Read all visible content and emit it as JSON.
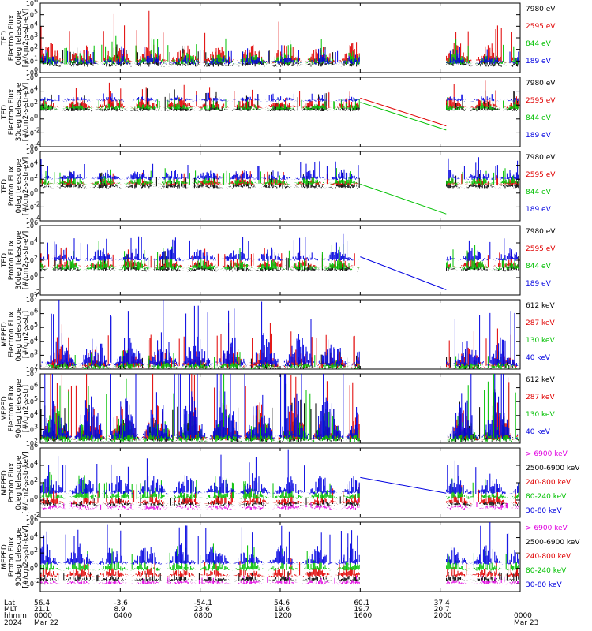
{
  "chart_data": {
    "type": "line",
    "x_axis": {
      "rows": [
        {
          "label": "Lat",
          "values": [
            "56.4",
            "-3.6",
            "-54.1",
            "54.6",
            "60.1",
            "37.4",
            ""
          ]
        },
        {
          "label": "MLT",
          "values": [
            "21.1",
            "8.9",
            "23.6",
            "19.6",
            "19.7",
            "20.7",
            ""
          ]
        },
        {
          "label": "hhmm",
          "values": [
            "0000",
            "0400",
            "0800",
            "1200",
            "1600",
            "2000",
            "0000"
          ]
        },
        {
          "label": "2024",
          "values": [
            "Mar 22",
            "",
            "",
            "",
            "",
            "",
            "Mar 23"
          ]
        }
      ],
      "hours": [
        0,
        4,
        8,
        12,
        16,
        20,
        24
      ],
      "range_hours": [
        0,
        24
      ],
      "data_gap_hours": [
        16.0,
        20.3
      ]
    },
    "panels": [
      {
        "ylabel": [
          "TED",
          "Electron Flux",
          "0deg telescope",
          "[#/cm2-s-str-eV]"
        ],
        "ylim_exp": [
          0,
          6
        ],
        "yticks": [
          {
            "exp": 6,
            "base": "10",
            "sup": "6"
          },
          {
            "exp": 5,
            "base": "10",
            "sup": "5"
          },
          {
            "exp": 4,
            "base": "10",
            "sup": "4"
          },
          {
            "exp": 3,
            "base": "10",
            "sup": "3"
          },
          {
            "exp": 2,
            "base": "10",
            "sup": "2"
          },
          {
            "exp": 1,
            "base": "10",
            "sup": "1"
          },
          {
            "exp": 0,
            "base": "10",
            "sup": "0"
          }
        ],
        "legend": [
          "7980 eV",
          "2595 eV",
          "844 eV",
          "189 eV"
        ],
        "colors": [
          "#000000",
          "#e00000",
          "#00c000",
          "#0000e0"
        ],
        "base": [
          0.6,
          0.9,
          0.8,
          0.8
        ],
        "amp": [
          0.8,
          1.8,
          1.0,
          0.7
        ],
        "gap_lines": []
      },
      {
        "ylabel": [
          "TED",
          "Electron Flux",
          "30deg telescope",
          "[#/cm2-s-str-eV]"
        ],
        "ylim_exp": [
          -4,
          6
        ],
        "yticks": [
          {
            "exp": 6,
            "base": "10",
            "sup": "6"
          },
          {
            "exp": 4,
            "base": "10",
            "sup": "4"
          },
          {
            "exp": 2,
            "base": "10",
            "sup": "2"
          },
          {
            "exp": 0,
            "base": "10",
            "sup": "0"
          },
          {
            "exp": -2,
            "base": "10",
            "sup": "-2"
          },
          {
            "exp": -4,
            "base": "10",
            "sup": "-4"
          }
        ],
        "legend": [
          "7980 eV",
          "2595 eV",
          "844 eV",
          "189 eV"
        ],
        "colors": [
          "#000000",
          "#e00000",
          "#00c000",
          "#0000e0"
        ],
        "base": [
          1.2,
          1.6,
          1.4,
          2.6
        ],
        "amp": [
          1.4,
          1.6,
          0.8,
          0.6
        ],
        "gap_lines": [
          {
            "series": 1,
            "from": 3.0,
            "to": -1.0
          },
          {
            "series": 2,
            "from": 2.4,
            "to": -1.6
          }
        ]
      },
      {
        "ylabel": [
          "TED",
          "Proton Flux",
          "0deg telescope",
          "[#/cm2-s-str-eV]"
        ],
        "ylim_exp": [
          -4,
          6
        ],
        "yticks": [
          {
            "exp": 6,
            "base": "10",
            "sup": "6"
          },
          {
            "exp": 4,
            "base": "10",
            "sup": "4"
          },
          {
            "exp": 2,
            "base": "10",
            "sup": "2"
          },
          {
            "exp": 0,
            "base": "10",
            "sup": "0"
          },
          {
            "exp": -2,
            "base": "10",
            "sup": "-2"
          },
          {
            "exp": -4,
            "base": "10",
            "sup": "-4"
          }
        ],
        "legend": [
          "7980 eV",
          "2595 eV",
          "844 eV",
          "189 eV"
        ],
        "colors": [
          "#000000",
          "#e00000",
          "#00c000",
          "#0000e0"
        ],
        "base": [
          0.8,
          1.2,
          1.3,
          2.0
        ],
        "amp": [
          1.0,
          1.0,
          1.2,
          1.4
        ],
        "gap_lines": [
          {
            "series": 2,
            "from": 1.3,
            "to": -3.0
          }
        ]
      },
      {
        "ylabel": [
          "TED",
          "Proton Flux",
          "30deg telescope",
          "[#/cm2-s-str-eV]"
        ],
        "ylim_exp": [
          -2,
          6
        ],
        "yticks": [
          {
            "exp": 6,
            "base": "10",
            "sup": "6"
          },
          {
            "exp": 4,
            "base": "10",
            "sup": "4"
          },
          {
            "exp": 2,
            "base": "10",
            "sup": "2"
          },
          {
            "exp": 0,
            "base": "10",
            "sup": "0"
          },
          {
            "exp": -2,
            "base": "10",
            "sup": "-2"
          }
        ],
        "legend": [
          "7980 eV",
          "2595 eV",
          "844 eV",
          "189 eV"
        ],
        "colors": [
          "#000000",
          "#e00000",
          "#00c000",
          "#0000e0"
        ],
        "base": [
          0.8,
          1.2,
          1.0,
          2.0
        ],
        "amp": [
          1.0,
          1.0,
          1.4,
          1.4
        ],
        "gap_lines": [
          {
            "series": 3,
            "from": 2.4,
            "to": -1.4
          }
        ]
      },
      {
        "ylabel": [
          "MEPED",
          "Electron Flux",
          "0deg telescope",
          "[#/cm2-s-str]"
        ],
        "ylim_exp": [
          2,
          7
        ],
        "yticks": [
          {
            "exp": 7,
            "base": "10",
            "sup": "7"
          },
          {
            "exp": 6,
            "base": "10",
            "sup": "6"
          },
          {
            "exp": 5,
            "base": "10",
            "sup": "5"
          },
          {
            "exp": 4,
            "base": "10",
            "sup": "4"
          },
          {
            "exp": 3,
            "base": "10",
            "sup": "3"
          },
          {
            "exp": 2,
            "base": "10",
            "sup": "2"
          }
        ],
        "legend": [
          "612 keV",
          "287 keV",
          "130 keV",
          "40 keV"
        ],
        "colors": [
          "#000000",
          "#e00000",
          "#00c000",
          "#0000e0"
        ],
        "base": [
          2.1,
          2.2,
          2.05,
          2.3
        ],
        "amp": [
          0.5,
          1.4,
          0.6,
          2.4
        ],
        "gap_lines": []
      },
      {
        "ylabel": [
          "MEPED",
          "Electron Flux",
          "90deg telescope",
          "[#/cm2-s-str]"
        ],
        "ylim_exp": [
          2,
          7
        ],
        "yticks": [
          {
            "exp": 7,
            "base": "10",
            "sup": "7"
          },
          {
            "exp": 6,
            "base": "10",
            "sup": "6"
          },
          {
            "exp": 5,
            "base": "10",
            "sup": "5"
          },
          {
            "exp": 4,
            "base": "10",
            "sup": "4"
          },
          {
            "exp": 3,
            "base": "10",
            "sup": "3"
          },
          {
            "exp": 2,
            "base": "10",
            "sup": "2"
          }
        ],
        "legend": [
          "612 keV",
          "287 keV",
          "130 keV",
          "40 keV"
        ],
        "colors": [
          "#000000",
          "#e00000",
          "#00c000",
          "#0000e0"
        ],
        "base": [
          2.2,
          2.3,
          2.2,
          2.4
        ],
        "amp": [
          1.6,
          2.6,
          2.4,
          3.4
        ],
        "gap_lines": []
      },
      {
        "ylabel": [
          "MEPED",
          "Proton Flux",
          "0deg telescope",
          "[#/cm2-s-str-keV]"
        ],
        "ylim_exp": [
          -2,
          6
        ],
        "yticks": [
          {
            "exp": 6,
            "base": "10",
            "sup": "6"
          },
          {
            "exp": 4,
            "base": "10",
            "sup": "4"
          },
          {
            "exp": 2,
            "base": "10",
            "sup": "2"
          },
          {
            "exp": 0,
            "base": "10",
            "sup": "0"
          },
          {
            "exp": -2,
            "base": "10",
            "sup": "-2"
          }
        ],
        "legend": [
          "> 6900 keV",
          "2500-6900 keV",
          "240-800 keV",
          "80-240 keV",
          "30-80 keV"
        ],
        "colors": [
          "#e000e0",
          "#000000",
          "#e00000",
          "#00c000",
          "#0000e0"
        ],
        "base": [
          -1.0,
          -0.6,
          -0.4,
          0.2,
          0.8
        ],
        "amp": [
          0.4,
          0.6,
          1.0,
          1.2,
          2.2
        ],
        "gap_lines": [
          {
            "series": 4,
            "from": 2.6,
            "to": 0.8
          }
        ]
      },
      {
        "ylabel": [
          "MEPED",
          "Proton Flux",
          "90deg telescope",
          "[#/cm2-s-str-keV]"
        ],
        "ylim_exp": [
          -3,
          6
        ],
        "yticks": [
          {
            "exp": 6,
            "base": "10",
            "sup": "6"
          },
          {
            "exp": 4,
            "base": "10",
            "sup": "4"
          },
          {
            "exp": 2,
            "base": "10",
            "sup": "2"
          },
          {
            "exp": 0,
            "base": "10",
            "sup": "0"
          },
          {
            "exp": -2,
            "base": "10",
            "sup": "-2"
          }
        ],
        "legend": [
          "> 6900 keV",
          "2500-6900 keV",
          "240-800 keV",
          "80-240 keV",
          "30-80 keV"
        ],
        "colors": [
          "#e000e0",
          "#000000",
          "#e00000",
          "#00c000",
          "#0000e0"
        ],
        "base": [
          -2.0,
          -1.6,
          -1.0,
          -0.2,
          0.6
        ],
        "amp": [
          0.5,
          0.6,
          1.2,
          1.4,
          2.6
        ],
        "gap_lines": []
      }
    ]
  }
}
